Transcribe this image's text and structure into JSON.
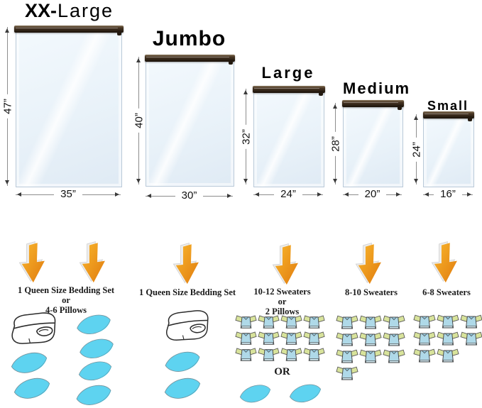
{
  "bags": [
    {
      "name": "XX-Large",
      "name_bold": "XX-",
      "name_light": "Large",
      "height": "47”",
      "width": "35”"
    },
    {
      "name": "Jumbo",
      "height": "40”",
      "width": "30”"
    },
    {
      "name": "Large",
      "height": "32”",
      "width": "24”"
    },
    {
      "name": "Medium",
      "height": "28”",
      "width": "20”"
    },
    {
      "name": "Small",
      "height": "24”",
      "width": "16”"
    }
  ],
  "capacities": [
    {
      "size": "XX-Large",
      "lines": [
        "1 Queen Size Bedding Set",
        "or",
        "4-6 Pillows"
      ],
      "contents": {
        "blankets": 1,
        "pillows": 6
      }
    },
    {
      "size": "Jumbo",
      "lines": [
        "1 Queen Size Bedding Set"
      ],
      "contents": {
        "blankets": 1,
        "pillows": 2
      }
    },
    {
      "size": "Large",
      "lines": [
        "10-12 Sweaters",
        "or",
        "2 Pillows"
      ],
      "or_divider": "OR",
      "contents": {
        "sweater_rows": [
          4,
          4,
          4
        ],
        "sweaters": 12,
        "pillows": 2
      }
    },
    {
      "size": "Medium",
      "lines": [
        "8-10 Sweaters"
      ],
      "contents": {
        "sweater_rows": [
          3,
          3,
          3,
          1
        ],
        "sweaters": 10
      }
    },
    {
      "size": "Small",
      "lines": [
        "6-8 Sweaters"
      ],
      "contents": {
        "sweater_rows": [
          3,
          3,
          2
        ],
        "sweaters": 8
      }
    }
  ],
  "colors": {
    "arrow_orange": "#F59A1C",
    "pillow_cyan": "#5ED3F0",
    "sweater_body": "#AFD9E8",
    "sweater_sleeve": "#D8E39B",
    "bag_fill": "#E9F2FA",
    "zipper_brown": "#2B1F14"
  }
}
